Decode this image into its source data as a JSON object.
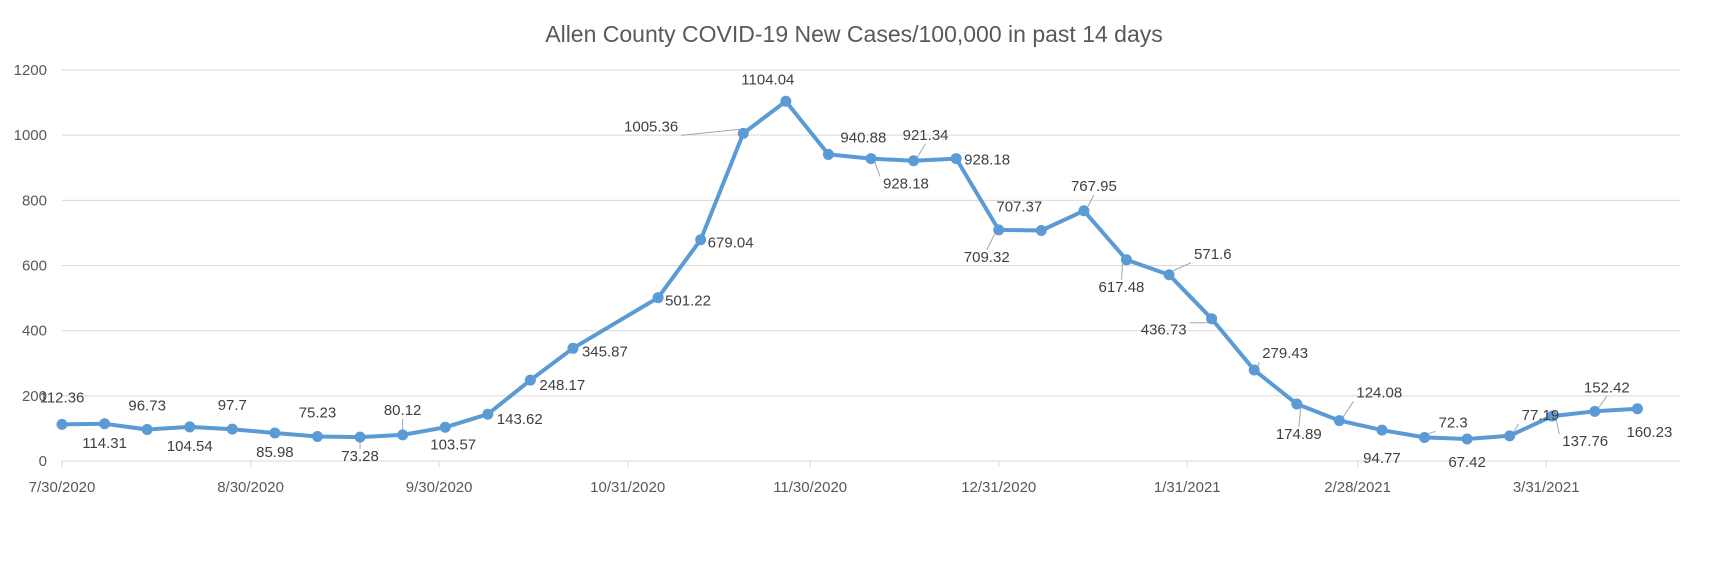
{
  "chart_data": {
    "type": "line",
    "title": "Allen County COVID-19 New Cases/100,000 in past 14 days",
    "xlabel": "",
    "ylabel": "",
    "ylim": [
      0,
      1200
    ],
    "y_ticks": [
      "0",
      "200",
      "400",
      "600",
      "800",
      "1000",
      "1200"
    ],
    "x_tick_labels": [
      "7/30/2020",
      "8/30/2020",
      "9/30/2020",
      "10/31/2020",
      "11/30/2020",
      "12/31/2020",
      "1/31/2021",
      "2/28/2021",
      "3/31/2021"
    ],
    "grid": true,
    "legend": "none",
    "line_color": "#5b9bd5",
    "series": [
      {
        "x": [
          "2020-07-30",
          "2020-08-06",
          "2020-08-13",
          "2020-08-20",
          "2020-08-27",
          "2020-09-03",
          "2020-09-10",
          "2020-09-17",
          "2020-09-24",
          "2020-10-01",
          "2020-10-08",
          "2020-10-15",
          "2020-10-22",
          "2020-11-05",
          "2020-11-12",
          "2020-11-19",
          "2020-11-26",
          "2020-12-03",
          "2020-12-10",
          "2020-12-17",
          "2020-12-24",
          "2020-12-31",
          "2021-01-07",
          "2021-01-14",
          "2021-01-21",
          "2021-01-28",
          "2021-02-04",
          "2021-02-11",
          "2021-02-18",
          "2021-02-25",
          "2021-03-04",
          "2021-03-11",
          "2021-03-18",
          "2021-03-25",
          "2021-04-01",
          "2021-04-08",
          "2021-04-15"
        ],
        "values": [
          112.36,
          114.31,
          96.73,
          104.54,
          97.7,
          85.98,
          75.23,
          73.28,
          80.12,
          103.57,
          143.62,
          248.17,
          345.87,
          501.22,
          679.04,
          1005.36,
          1104.04,
          940.88,
          928.18,
          921.34,
          928.18,
          709.32,
          707.37,
          767.95,
          617.48,
          571.6,
          436.73,
          279.43,
          174.89,
          124.08,
          94.77,
          72.3,
          67.42,
          77.19,
          137.76,
          152.42,
          160.23
        ],
        "labels": [
          "112.36",
          "114.31",
          "96.73",
          "104.54",
          "97.7",
          "85.98",
          "75.23",
          "73.28",
          "80.12",
          "103.57",
          "143.62",
          "248.17",
          "345.87",
          "501.22",
          "679.04",
          "1005.36",
          "1104.04",
          "940.88",
          "928.18",
          "921.34",
          "928.18",
          "709.32",
          "707.37",
          "767.95",
          "617.48",
          "571.6",
          "436.73",
          "279.43",
          "174.89",
          "124.08",
          "94.77",
          "72.3",
          "67.42",
          "77.19",
          "137.76",
          "152.42",
          "160.23"
        ]
      }
    ]
  }
}
